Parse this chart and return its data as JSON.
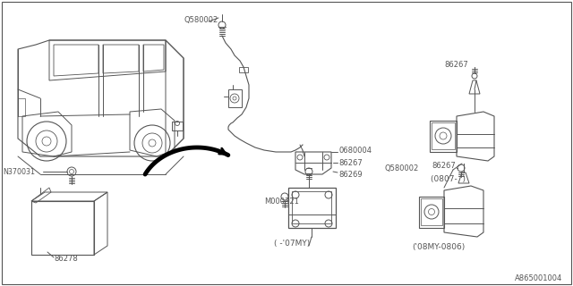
{
  "bg_color": "#ffffff",
  "line_color": "#555555",
  "text_color": "#555555",
  "border_color": "#999999",
  "labels": {
    "Q580002_top": "Q580002",
    "N370031": "N370031",
    "86278": "86278",
    "0680004": "0680004",
    "86267_mid": "86267",
    "86269": "86269",
    "M000321": "M000321",
    "caption_07": "( -'07MY)",
    "86267_top_right": "86267",
    "Q580002_right": "Q580002",
    "caption_0807": "(0807-  )",
    "86267_bot_right": "86267",
    "caption_0806": "('08MY-0806)",
    "diagram_code": "A865001004"
  }
}
